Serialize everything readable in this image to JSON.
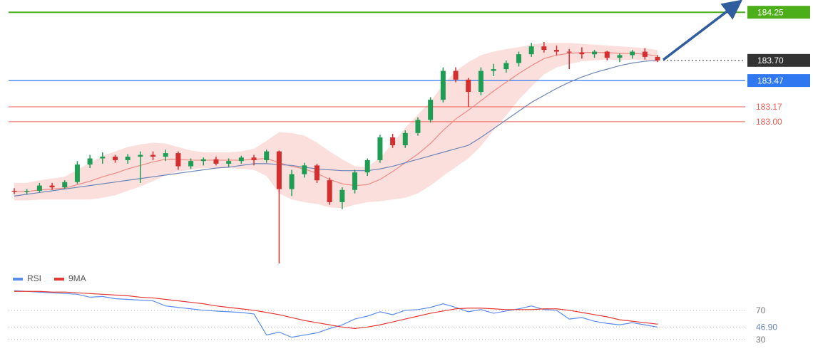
{
  "chart_data": [
    {
      "type": "candlestick",
      "ylim": [
        181.38,
        184.39
      ],
      "up_color": "#1f9d55",
      "down_color": "#d32f2f",
      "open": [
        182.21,
        182.2,
        182.21,
        182.27,
        182.25,
        182.31,
        182.51,
        182.58,
        182.6,
        182.56,
        182.6,
        182.62,
        182.6,
        182.64,
        182.49,
        182.55,
        182.57,
        182.52,
        182.55,
        182.59,
        182.56,
        182.66,
        182.23,
        182.4,
        182.5,
        182.33,
        182.08,
        182.22,
        182.42,
        182.56,
        182.82,
        182.73,
        182.87,
        183.02,
        183.25,
        183.58,
        183.48,
        183.34,
        183.58,
        183.6,
        183.67,
        183.77,
        183.86,
        183.82,
        183.8,
        183.79,
        183.77,
        183.8,
        183.73,
        183.76,
        183.8,
        183.74
      ],
      "high": [
        182.24,
        182.23,
        182.3,
        182.3,
        182.33,
        182.55,
        182.62,
        182.65,
        182.62,
        182.63,
        182.66,
        182.66,
        182.68,
        182.66,
        182.58,
        182.59,
        182.6,
        182.58,
        182.61,
        182.62,
        182.68,
        182.67,
        182.45,
        182.53,
        182.52,
        182.36,
        182.25,
        182.45,
        182.58,
        182.85,
        182.86,
        182.9,
        183.05,
        183.28,
        183.62,
        183.62,
        183.5,
        183.62,
        183.66,
        183.7,
        183.8,
        183.9,
        183.91,
        183.87,
        183.83,
        183.85,
        183.82,
        183.81,
        183.78,
        183.82,
        183.84,
        183.76
      ],
      "low": [
        182.17,
        182.17,
        182.19,
        182.22,
        182.23,
        182.29,
        182.47,
        182.52,
        182.53,
        182.52,
        182.3,
        182.56,
        182.55,
        182.45,
        182.46,
        182.5,
        182.5,
        182.48,
        182.52,
        182.5,
        182.53,
        181.38,
        182.15,
        182.36,
        182.3,
        182.05,
        182.0,
        182.18,
        182.38,
        182.53,
        182.7,
        182.7,
        182.84,
        182.99,
        183.22,
        183.45,
        183.17,
        183.3,
        183.52,
        183.56,
        183.63,
        183.74,
        183.79,
        183.76,
        183.6,
        183.72,
        183.73,
        183.7,
        183.68,
        183.72,
        183.71,
        183.68
      ],
      "close": [
        182.2,
        182.21,
        182.27,
        182.25,
        182.31,
        182.51,
        182.58,
        182.6,
        182.56,
        182.6,
        182.62,
        182.6,
        182.64,
        182.49,
        182.55,
        182.57,
        182.52,
        182.55,
        182.59,
        182.56,
        182.66,
        182.23,
        182.4,
        182.5,
        182.33,
        182.08,
        182.22,
        182.42,
        182.56,
        182.82,
        182.73,
        182.87,
        183.02,
        183.25,
        183.58,
        183.48,
        183.34,
        183.58,
        183.6,
        183.67,
        183.77,
        183.86,
        183.82,
        183.8,
        183.79,
        183.77,
        183.8,
        183.73,
        183.76,
        183.8,
        183.74,
        183.7
      ],
      "band": {
        "color": "#f7b9b4",
        "upper": [
          182.3,
          182.3,
          182.33,
          182.35,
          182.37,
          182.45,
          182.53,
          182.61,
          182.66,
          182.71,
          182.74,
          182.76,
          182.75,
          182.71,
          182.67,
          182.65,
          182.65,
          182.65,
          182.66,
          182.69,
          182.78,
          182.88,
          182.87,
          182.84,
          182.76,
          182.66,
          182.57,
          182.49,
          182.48,
          182.59,
          182.75,
          182.93,
          183.08,
          183.23,
          183.42,
          183.58,
          183.68,
          183.76,
          183.8,
          183.83,
          183.85,
          183.88,
          183.9,
          183.9,
          183.9,
          183.89,
          183.88,
          183.87,
          183.86,
          183.85,
          183.84,
          183.82
        ],
        "lower": [
          182.1,
          182.1,
          182.11,
          182.11,
          182.11,
          182.11,
          182.11,
          182.13,
          182.16,
          182.21,
          182.26,
          182.32,
          182.39,
          182.43,
          182.45,
          182.47,
          182.47,
          182.47,
          182.46,
          182.45,
          182.38,
          182.18,
          182.11,
          182.08,
          182.06,
          182.02,
          182.01,
          182.05,
          182.08,
          182.09,
          182.11,
          182.13,
          182.18,
          182.27,
          182.38,
          182.48,
          182.58,
          182.72,
          182.9,
          183.07,
          183.25,
          183.4,
          183.54,
          183.62,
          183.66,
          183.69,
          183.7,
          183.71,
          183.7,
          183.71,
          183.7,
          183.68
        ]
      },
      "overlays": [
        {
          "color": "#f08a84",
          "values": [
            182.2,
            182.2,
            182.22,
            182.23,
            182.24,
            182.28,
            182.32,
            182.37,
            182.41,
            182.46,
            182.5,
            182.54,
            182.57,
            182.57,
            182.56,
            182.56,
            182.56,
            182.56,
            182.56,
            182.57,
            182.58,
            182.53,
            182.49,
            182.46,
            182.41,
            182.34,
            182.29,
            182.27,
            182.28,
            182.34,
            182.43,
            182.53,
            182.63,
            182.75,
            182.9,
            183.03,
            183.13,
            183.24,
            183.35,
            183.45,
            183.55,
            183.64,
            183.72,
            183.76,
            183.78,
            183.79,
            183.79,
            183.79,
            183.78,
            183.78,
            183.77,
            183.75
          ]
        },
        {
          "color": "#6f86b8",
          "values": [
            182.15,
            182.17,
            182.19,
            182.21,
            182.23,
            182.25,
            182.27,
            182.29,
            182.31,
            182.33,
            182.35,
            182.37,
            182.39,
            182.41,
            182.43,
            182.45,
            182.47,
            182.48,
            182.5,
            182.52,
            182.52,
            182.51,
            182.5,
            182.48,
            182.46,
            182.45,
            182.44,
            182.44,
            182.44,
            182.46,
            182.49,
            182.53,
            182.57,
            182.61,
            182.65,
            182.69,
            182.73,
            182.82,
            182.92,
            183.02,
            183.12,
            183.22,
            183.3,
            183.38,
            183.45,
            183.51,
            183.56,
            183.6,
            183.64,
            183.67,
            183.69,
            183.7
          ]
        }
      ],
      "levels": [
        {
          "value": 184.25,
          "color": "#4caf1a",
          "line": "solid",
          "label_style": "box"
        },
        {
          "value": 183.7,
          "label": "183.70",
          "color": "#333333",
          "line": "dotted",
          "label_style": "box"
        },
        {
          "value": 183.47,
          "color": "#2f78f0",
          "line": "solid",
          "label_style": "box"
        },
        {
          "value": 183.17,
          "color": "#ee5a52",
          "line": "solid",
          "label_style": "text"
        },
        {
          "value": 183,
          "label": "183.00",
          "color": "#ee5a52",
          "line": "solid",
          "label_style": "text"
        }
      ]
    },
    {
      "type": "line",
      "ylim": [
        17,
        107
      ],
      "yticks": [
        30,
        {
          "value": 46.9,
          "label": "46.90"
        },
        70
      ],
      "series": [
        {
          "name": "RSI",
          "color": "#5b8def",
          "values": [
            97,
            96,
            95,
            94,
            93,
            92,
            88,
            89,
            86,
            85,
            84,
            83,
            76,
            74,
            72,
            70,
            69,
            68,
            67,
            65,
            36,
            40,
            33,
            36,
            39,
            45,
            50,
            58,
            62,
            68,
            64,
            70,
            71,
            74,
            79,
            74,
            68,
            71,
            66,
            69,
            72,
            76,
            71,
            70,
            58,
            60,
            55,
            52,
            50,
            53,
            50,
            46.9
          ]
        },
        {
          "name": "9MA",
          "color": "#e53935",
          "values": [
            96,
            96,
            96,
            95,
            95,
            94,
            93,
            92,
            91,
            90,
            88,
            87,
            85,
            83,
            81,
            79,
            76,
            74,
            72,
            70,
            67,
            64,
            60,
            56,
            53,
            50,
            47,
            45,
            47,
            50,
            54,
            58,
            62,
            66,
            69,
            72,
            73,
            73,
            72,
            71,
            71,
            71,
            72,
            72,
            70,
            67,
            64,
            61,
            57,
            55,
            53,
            51
          ]
        }
      ]
    }
  ]
}
